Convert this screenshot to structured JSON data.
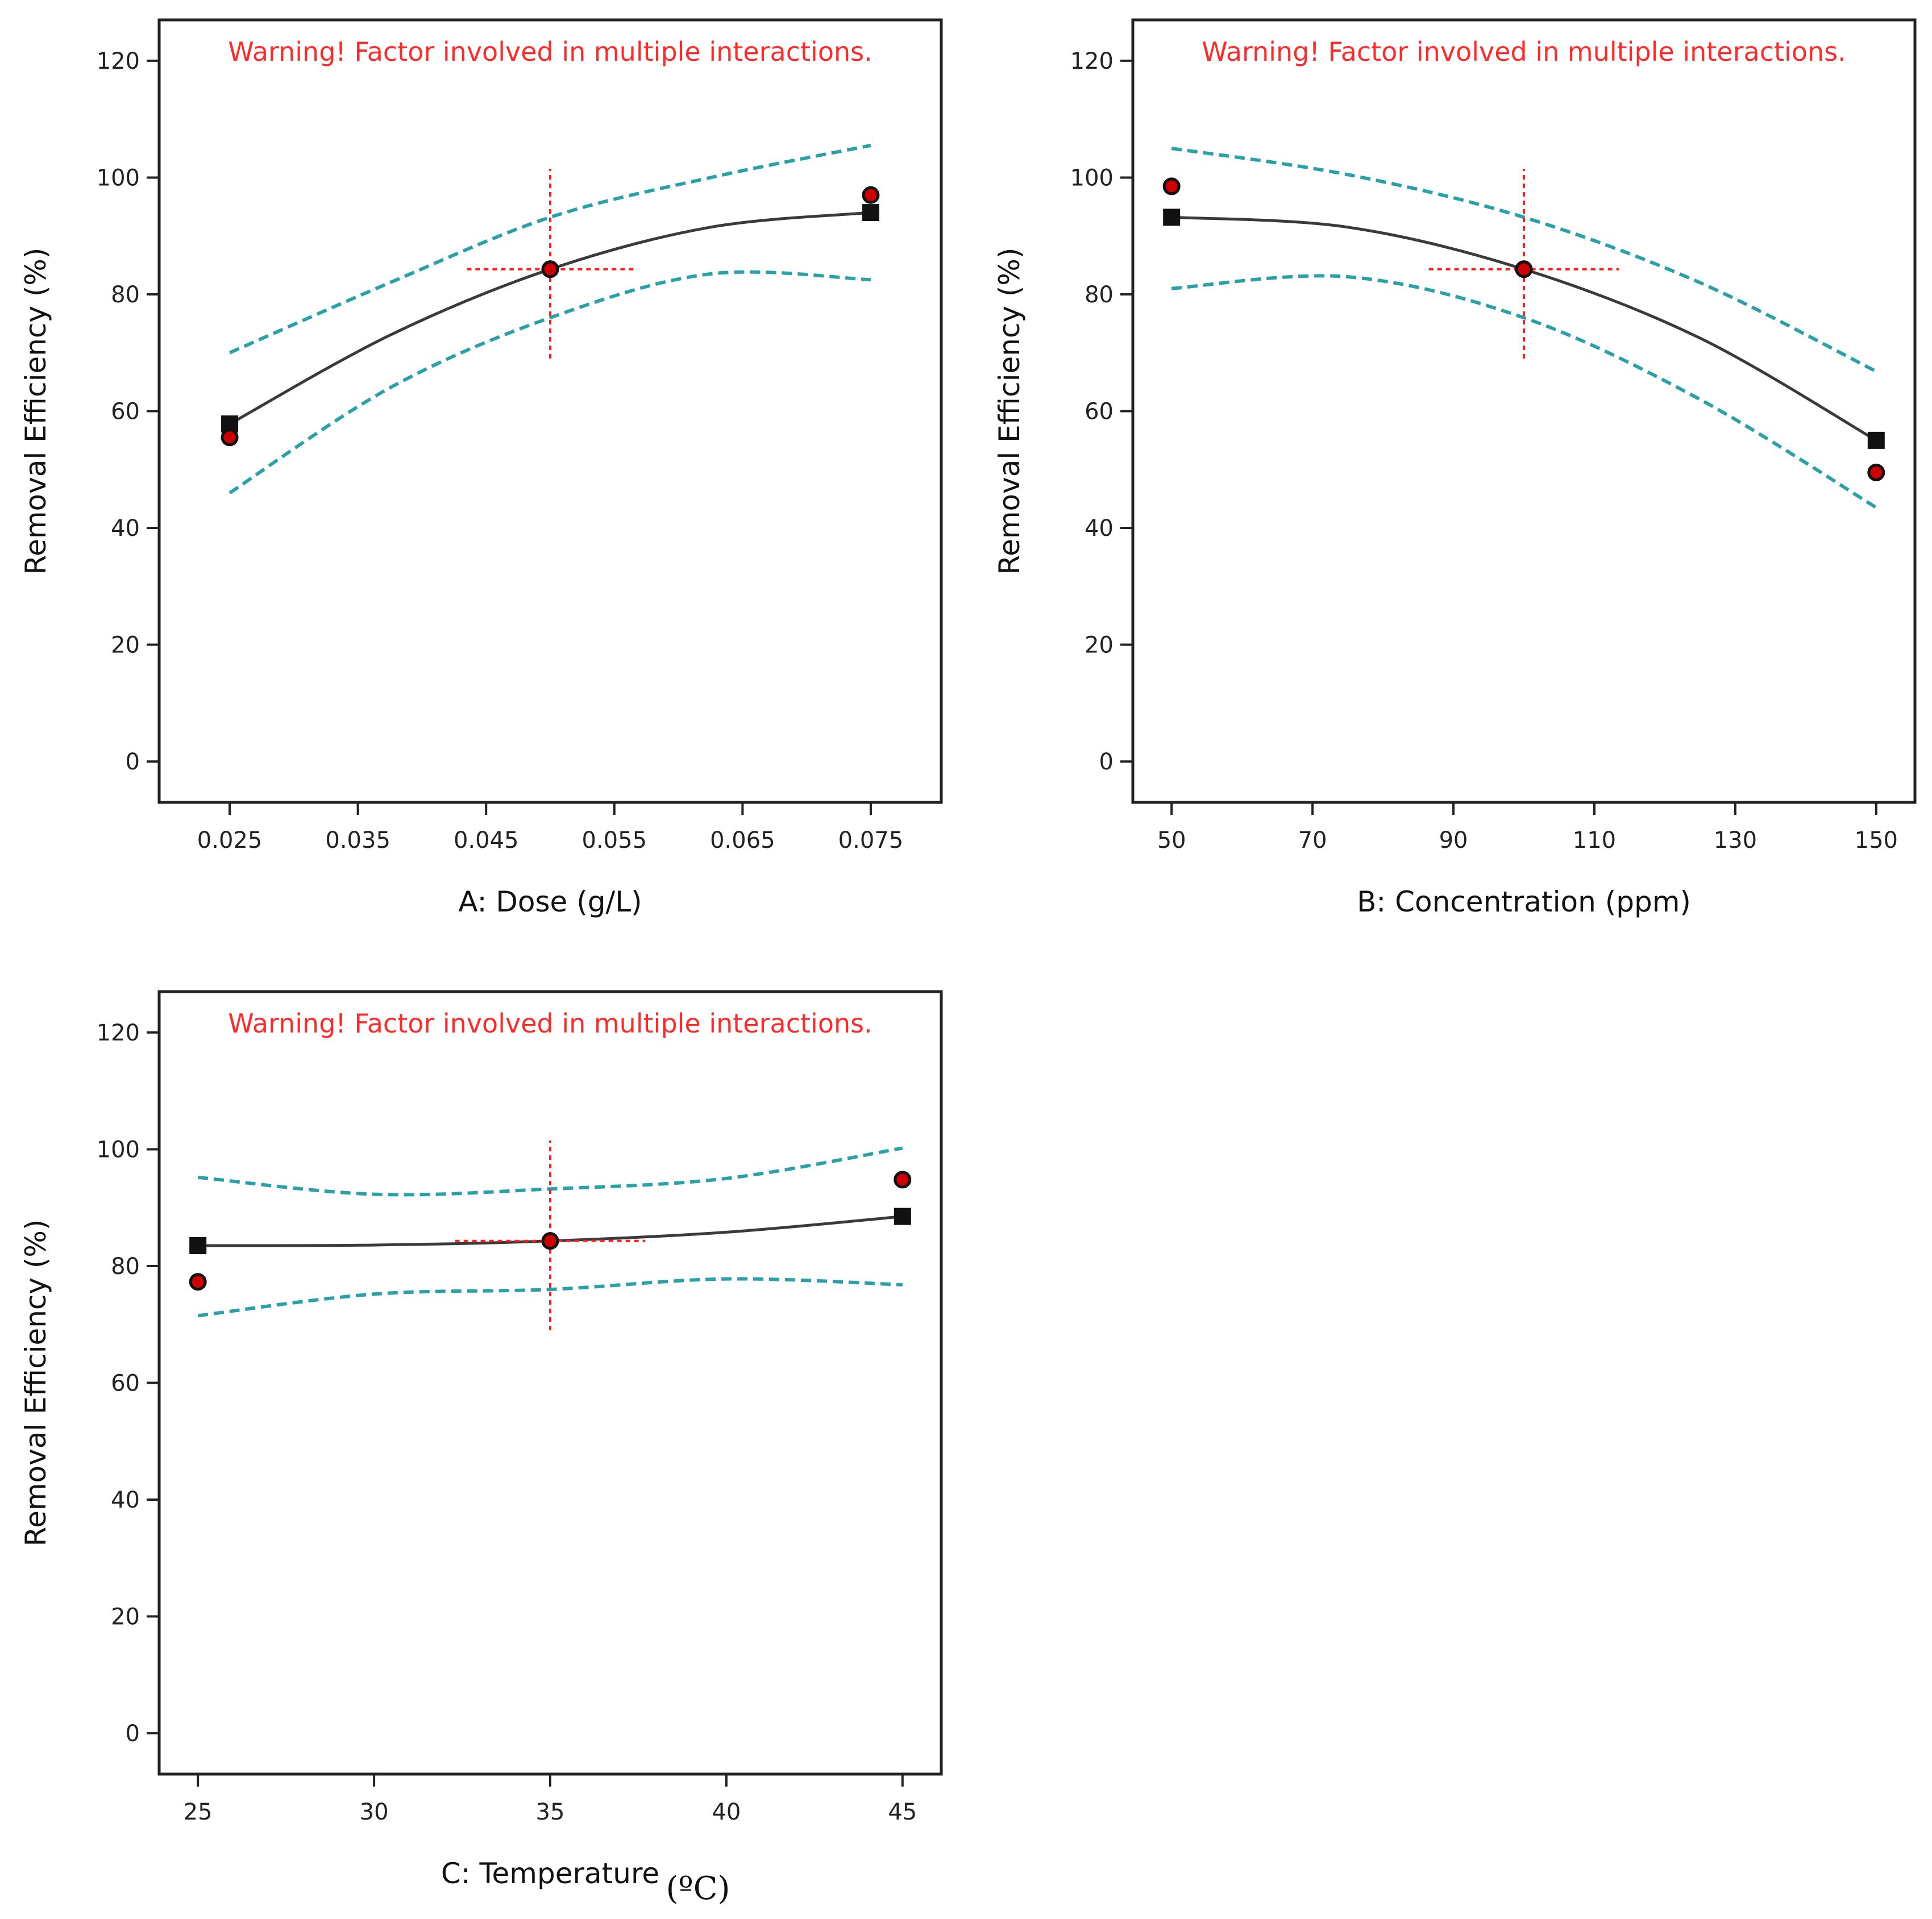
{
  "colors": {
    "warning": "#ff2a2a",
    "fit_line": "#3a3a3a",
    "confidence_band": "#2aa1a8",
    "center_cross": "#ff1f1f",
    "design_point": "#cc0000",
    "design_point_edge": "#111111",
    "predicted_marker": "#111111",
    "frame": "#222222"
  },
  "chart_data": [
    {
      "type": "line",
      "title": "",
      "warning": "Warning! Factor involved in multiple interactions.",
      "xlabel": "A: Dose (g/L)",
      "ylabel": "Removal Efficiency (%)",
      "xlim": [
        0.0195,
        0.0805
      ],
      "ylim": [
        -7,
        127
      ],
      "xticks": [
        0.025,
        0.035,
        0.045,
        0.055,
        0.065,
        0.075
      ],
      "xtick_labels": [
        "0.025",
        "0.035",
        "0.045",
        "0.055",
        "0.065",
        "0.075"
      ],
      "yticks": [
        0,
        20,
        40,
        60,
        80,
        100,
        120
      ],
      "ytick_labels": [
        "0",
        "20",
        "40",
        "60",
        "80",
        "100",
        "120"
      ],
      "center": {
        "x": 0.05,
        "y": 84.3,
        "cross_half_width": 0.0065,
        "cross_y_range": [
          69,
          101.5
        ]
      },
      "series": [
        {
          "name": "Prediction",
          "style": "solid",
          "x": [
            0.025,
            0.0375,
            0.05,
            0.0625,
            0.075
          ],
          "y": [
            57.8,
            73.0,
            84.3,
            91.5,
            94.0
          ]
        },
        {
          "name": "Upper 95% CI",
          "style": "dashed",
          "x": [
            0.025,
            0.0375,
            0.05,
            0.0625,
            0.075
          ],
          "y": [
            70.0,
            82.0,
            93.2,
            100.0,
            105.5
          ]
        },
        {
          "name": "Lower 95% CI",
          "style": "dashed",
          "x": [
            0.025,
            0.0375,
            0.05,
            0.0625,
            0.075
          ],
          "y": [
            46.0,
            64.0,
            76.0,
            83.5,
            82.5
          ]
        }
      ],
      "design_points": {
        "x": [
          0.025,
          0.05,
          0.075
        ],
        "y": [
          55.5,
          84.3,
          97.0
        ]
      },
      "predicted_markers": {
        "x": [
          0.025,
          0.075
        ],
        "y": [
          57.8,
          94.0
        ]
      }
    },
    {
      "type": "line",
      "title": "",
      "warning": "Warning! Factor involved in multiple interactions.",
      "xlabel": "B: Concentration (ppm)",
      "ylabel": "Removal Efficiency (%)",
      "xlim": [
        44.5,
        155.5
      ],
      "ylim": [
        -7,
        127
      ],
      "xticks": [
        50,
        70,
        90,
        110,
        130,
        150
      ],
      "xtick_labels": [
        "50",
        "70",
        "90",
        "110",
        "130",
        "150"
      ],
      "yticks": [
        0,
        20,
        40,
        60,
        80,
        100,
        120
      ],
      "ytick_labels": [
        "0",
        "20",
        "40",
        "60",
        "80",
        "100",
        "120"
      ],
      "center": {
        "x": 100,
        "y": 84.3,
        "cross_half_width": 13.5,
        "cross_y_range": [
          69,
          101.5
        ]
      },
      "series": [
        {
          "name": "Prediction",
          "style": "solid",
          "x": [
            50,
            75,
            100,
            125,
            150
          ],
          "y": [
            93.2,
            91.5,
            84.3,
            72.5,
            55.0
          ]
        },
        {
          "name": "Upper 95% CI",
          "style": "dashed",
          "x": [
            50,
            75,
            100,
            125,
            150
          ],
          "y": [
            105.0,
            100.5,
            93.2,
            82.0,
            66.8
          ]
        },
        {
          "name": "Lower 95% CI",
          "style": "dashed",
          "x": [
            50,
            75,
            100,
            125,
            150
          ],
          "y": [
            81.0,
            83.0,
            76.0,
            62.0,
            43.5
          ]
        }
      ],
      "design_points": {
        "x": [
          50,
          100,
          150
        ],
        "y": [
          98.5,
          84.3,
          49.5
        ]
      },
      "predicted_markers": {
        "x": [
          50,
          150
        ],
        "y": [
          93.2,
          55.0
        ]
      }
    },
    {
      "type": "line",
      "title": "",
      "warning": "Warning! Factor involved in multiple interactions.",
      "xlabel": "C: Temperature",
      "xlabel_unit": "(ºC)",
      "ylabel": "Removal Efficiency (%)",
      "xlim": [
        23.9,
        46.1
      ],
      "ylim": [
        -7,
        127
      ],
      "xticks": [
        25,
        30,
        35,
        40,
        45
      ],
      "xtick_labels": [
        "25",
        "30",
        "35",
        "40",
        "45"
      ],
      "yticks": [
        0,
        20,
        40,
        60,
        80,
        100,
        120
      ],
      "ytick_labels": [
        "0",
        "20",
        "40",
        "60",
        "80",
        "100",
        "120"
      ],
      "center": {
        "x": 35,
        "y": 84.3,
        "cross_half_width": 2.7,
        "cross_y_range": [
          69,
          101.5
        ]
      },
      "series": [
        {
          "name": "Prediction",
          "style": "solid",
          "x": [
            25,
            30,
            35,
            40,
            45
          ],
          "y": [
            83.5,
            83.6,
            84.3,
            85.8,
            88.5
          ]
        },
        {
          "name": "Upper 95% CI",
          "style": "dashed",
          "x": [
            25,
            30,
            35,
            40,
            45
          ],
          "y": [
            95.2,
            92.3,
            93.2,
            95.0,
            100.2
          ]
        },
        {
          "name": "Lower 95% CI",
          "style": "dashed",
          "x": [
            25,
            30,
            35,
            40,
            45
          ],
          "y": [
            71.5,
            75.2,
            76.0,
            77.8,
            76.8
          ]
        }
      ],
      "design_points": {
        "x": [
          25,
          35,
          45
        ],
        "y": [
          77.3,
          84.3,
          94.8
        ]
      },
      "predicted_markers": {
        "x": [
          25,
          45
        ],
        "y": [
          83.5,
          88.5
        ]
      }
    }
  ]
}
